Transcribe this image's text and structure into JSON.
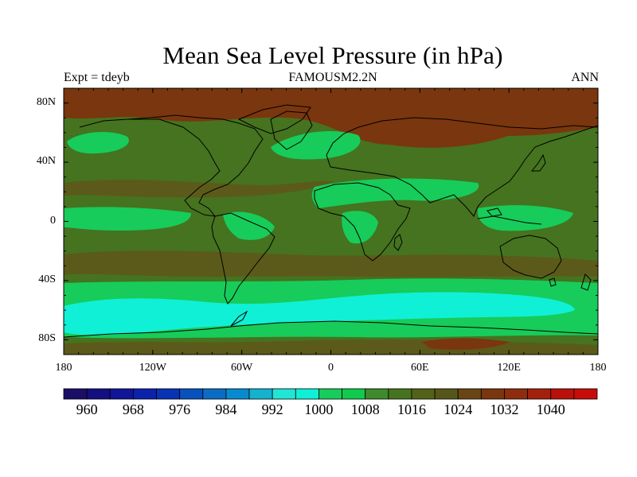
{
  "title": "Mean Sea Level Pressure (in hPa)",
  "subtitle_left": "Expt = tdeyb",
  "subtitle_center": "FAMOUSM2.2N",
  "subtitle_right": "ANN",
  "lat_ticks": [
    {
      "label": "80N",
      "value": 80
    },
    {
      "label": "40N",
      "value": 40
    },
    {
      "label": "0",
      "value": 0
    },
    {
      "label": "40S",
      "value": -40
    },
    {
      "label": "80S",
      "value": -80
    }
  ],
  "lon_ticks": [
    {
      "label": "180",
      "value": -180
    },
    {
      "label": "120W",
      "value": -120
    },
    {
      "label": "60W",
      "value": -60
    },
    {
      "label": "0",
      "value": 0
    },
    {
      "label": "60E",
      "value": 60
    },
    {
      "label": "120E",
      "value": 120
    },
    {
      "label": "180",
      "value": 180
    }
  ],
  "colorbar": {
    "labels": [
      "960",
      "968",
      "976",
      "984",
      "992",
      "1000",
      "1008",
      "1016",
      "1024",
      "1032",
      "1040"
    ],
    "colors": [
      "#1a0f66",
      "#140f80",
      "#10159a",
      "#0c22aa",
      "#0733b4",
      "#0752bd",
      "#0b6cc4",
      "#078ace",
      "#14b2cf",
      "#21e5d5",
      "#0ff0d6",
      "#17cc5a",
      "#11c94d",
      "#3f8a2b",
      "#45731f",
      "#526318",
      "#56561a",
      "#6a4514",
      "#7a360e",
      "#8f2c0e",
      "#a3200d",
      "#bb110b",
      "#c80c09"
    ]
  },
  "map_colors": {
    "high": "#7a360e",
    "mid_high": "#5b5a1a",
    "mid": "#45731f",
    "low": "#17cc5a",
    "very_low": "#0ff0d6",
    "coast": "#000000"
  }
}
